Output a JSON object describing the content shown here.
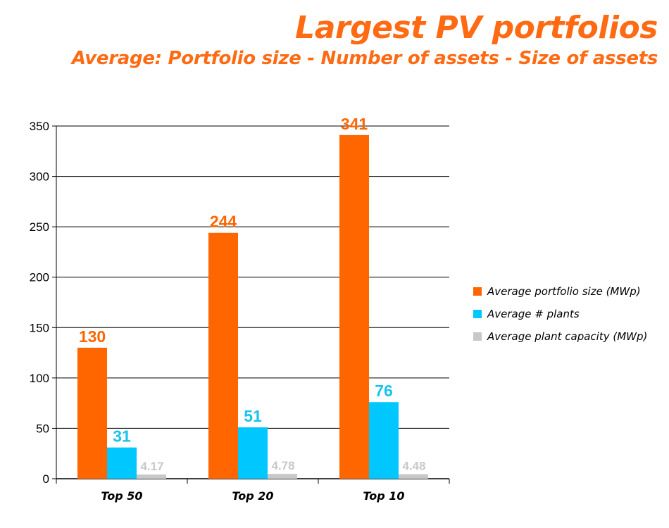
{
  "header": {
    "title": "Largest PV portfolios",
    "subtitle": "Average: Portfolio size - Number of assets - Size of assets"
  },
  "colors": {
    "accent": "#ff6a13",
    "series": [
      "#ff6600",
      "#00c8ff",
      "#c8c8c8"
    ],
    "label_colors": [
      "#ff6600",
      "#19c3ee",
      "#c8c8c8"
    ]
  },
  "chart_data": {
    "type": "bar",
    "title": "Largest PV portfolios",
    "subtitle": "Average: Portfolio size - Number of assets - Size of assets",
    "xlabel": "",
    "ylabel": "",
    "categories": [
      "Top 50",
      "Top 20",
      "Top 10"
    ],
    "series": [
      {
        "name": "Average portfolio size (MWp)",
        "values": [
          130,
          244,
          341
        ],
        "labels": [
          "130",
          "244",
          "341"
        ]
      },
      {
        "name": "Average # plants",
        "values": [
          31,
          51,
          76
        ],
        "labels": [
          "31",
          "51",
          "76"
        ]
      },
      {
        "name": "Average plant capacity (MWp)",
        "values": [
          4.17,
          4.78,
          4.48
        ],
        "labels": [
          "4.17",
          "4.78",
          "4.48"
        ]
      }
    ],
    "ylim": [
      0,
      350
    ],
    "yticks": [
      0,
      50,
      100,
      150,
      200,
      250,
      300,
      350
    ],
    "grid": true,
    "legend": "right"
  }
}
